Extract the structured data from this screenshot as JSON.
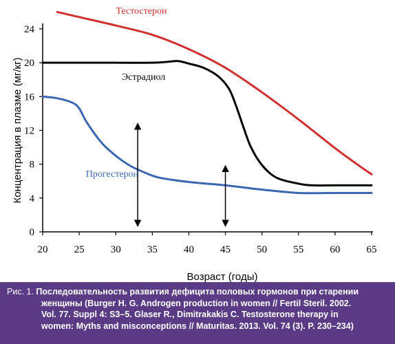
{
  "chart_data": {
    "type": "line",
    "xlabel": "Возраст (годы)",
    "ylabel": "Концентрация в плазме (мг/кг)",
    "xlim": [
      20,
      65
    ],
    "ylim": [
      0,
      24
    ],
    "xticks": [
      20,
      25,
      30,
      35,
      40,
      45,
      50,
      55,
      60,
      65
    ],
    "yticks": [
      0,
      4,
      8,
      12,
      16,
      20,
      24
    ],
    "grid": false,
    "legend": "none",
    "series": [
      {
        "name": "Тестостерон",
        "color": "#d32f2f",
        "x": [
          22,
          25,
          30,
          35,
          40,
          45,
          50,
          55,
          60,
          63,
          65
        ],
        "y": [
          26.0,
          25.4,
          24.4,
          23.3,
          21.6,
          19.4,
          16.5,
          13.3,
          9.9,
          8.0,
          6.8
        ]
      },
      {
        "name": "Эстрадиол",
        "color": "#000000",
        "x": [
          20,
          25,
          30,
          35,
          37,
          38.5,
          40,
          42,
          44,
          45.5,
          46.5,
          47.5,
          48.5,
          50,
          52,
          55,
          57,
          60,
          65
        ],
        "y": [
          20.0,
          20.0,
          20.0,
          20.0,
          20.1,
          20.2,
          19.9,
          19.4,
          18.4,
          16.9,
          14.8,
          12.3,
          10.0,
          7.9,
          6.4,
          5.7,
          5.5,
          5.5,
          5.5
        ]
      },
      {
        "name": "Прогестерон",
        "color": "#3a66b4",
        "x": [
          20,
          22,
          24,
          25,
          26,
          28,
          30,
          32,
          34,
          36,
          40,
          45,
          50,
          55,
          60,
          65
        ],
        "y": [
          16.0,
          15.8,
          15.3,
          14.6,
          13.0,
          10.6,
          9.0,
          7.8,
          7.0,
          6.4,
          5.9,
          5.5,
          5.0,
          4.6,
          4.6,
          4.6
        ]
      }
    ],
    "annotations": [
      {
        "text": "Тестостерон",
        "x": 33.5,
        "y": 26.2,
        "color": "#d32f2f"
      },
      {
        "text": "Эстрадиол",
        "x": 33.8,
        "y": 18.4,
        "color": "#000000"
      },
      {
        "text": "Прогестерон",
        "x": 29.5,
        "y": 6.9,
        "color": "#3a66b4"
      }
    ],
    "arrows": [
      {
        "x": 33,
        "y_from": 1.0,
        "y_to": 12.5
      },
      {
        "x": 45,
        "y_from": 1.0,
        "y_to": 7.5
      }
    ]
  },
  "caption": {
    "lines": [
      {
        "prefix": "Рис. 1. ",
        "text": "Последовательность развития дефицита половых гормонов при старении"
      },
      {
        "prefix": "",
        "text": "женщины (Burger H. G. Androgen production in women // Fertil Steril. 2002."
      },
      {
        "prefix": "",
        "text": "Vol. 77. Suppl 4: S3–5. Glaser R., Dimitrakakis C. Testosterone therapy in"
      },
      {
        "prefix": "",
        "text": "women: Myths and misconceptions // Maturitas. 2013. Vol. 74 (3). P. 230–234)"
      }
    ]
  }
}
